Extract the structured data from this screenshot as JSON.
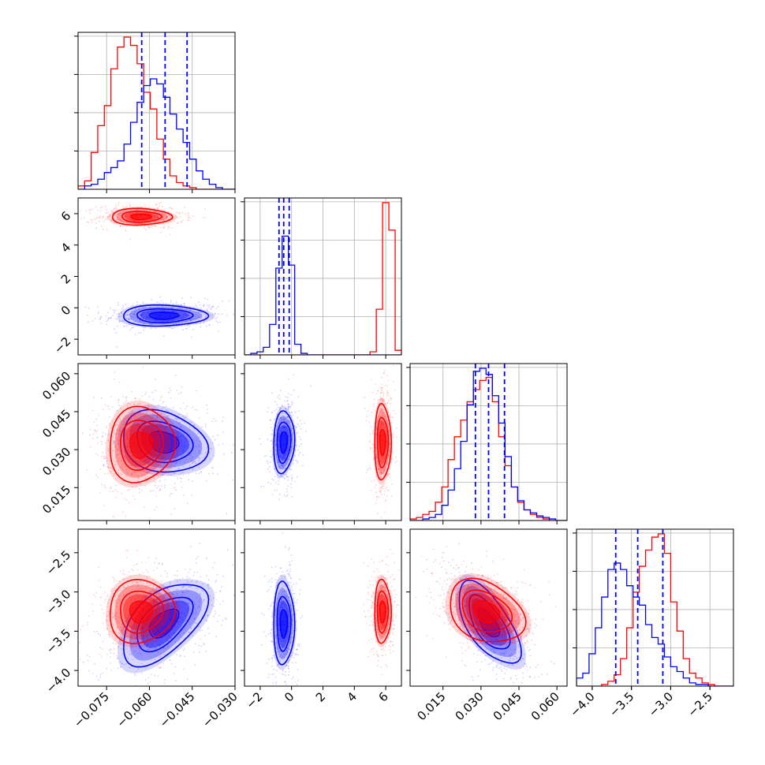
{
  "colors": {
    "series_a": "#ff0000",
    "series_b": "#0000ff",
    "frame": "#000000",
    "grid": "#b0b0b0"
  },
  "chart_data": {
    "type": "corner",
    "grid": true,
    "legend": "none",
    "series": [
      {
        "color": "#ff0000"
      },
      {
        "color": "#0000ff"
      }
    ],
    "parameters": [
      {
        "range": [
          -0.085,
          -0.03
        ],
        "ticks": [
          -0.075,
          -0.06,
          -0.045,
          -0.03
        ],
        "tick_labels": [
          "−0.075",
          "−0.060",
          "−0.045",
          "−0.030"
        ],
        "quantiles": [
          -0.0627,
          -0.0545,
          -0.0468
        ],
        "hist_bins": [
          -0.085,
          -0.0827,
          -0.0804,
          -0.0781,
          -0.0758,
          -0.0735,
          -0.0712,
          -0.0689,
          -0.0666,
          -0.0643,
          -0.062,
          -0.0597,
          -0.0574,
          -0.0551,
          -0.0528,
          -0.0505,
          -0.0482,
          -0.0459,
          -0.0436,
          -0.0413,
          -0.039,
          -0.0367,
          -0.0344,
          -0.0321,
          -0.03
        ],
        "hist_red": [
          0.02,
          0.05,
          0.22,
          0.38,
          0.5,
          0.72,
          0.85,
          0.91,
          0.86,
          0.75,
          0.58,
          0.48,
          0.3,
          0.18,
          0.08,
          0.04,
          0.02,
          0.01,
          0,
          0,
          0,
          0,
          0,
          0
        ],
        "hist_blue": [
          0,
          0.02,
          0.03,
          0.06,
          0.1,
          0.13,
          0.17,
          0.27,
          0.4,
          0.52,
          0.62,
          0.66,
          0.63,
          0.55,
          0.45,
          0.36,
          0.28,
          0.18,
          0.11,
          0.06,
          0.03,
          0.01,
          0,
          0
        ]
      },
      {
        "range": [
          -3.0,
          7.0
        ],
        "ticks": [
          -2,
          0,
          2,
          4,
          6
        ],
        "tick_labels": [
          "−2",
          "0",
          "2",
          "4",
          "6"
        ],
        "quantiles": [
          -0.8,
          -0.5,
          -0.15
        ],
        "hist_bins": [
          -3,
          -2.6,
          -2.2,
          -1.8,
          -1.4,
          -1.0,
          -0.6,
          -0.2,
          0.2,
          0.6,
          1.0,
          1.4,
          1.8,
          2.2,
          2.6,
          3.0,
          3.4,
          3.8,
          4.2,
          4.6,
          5.0,
          5.4,
          5.8,
          6.2,
          6.6,
          7.0
        ],
        "hist_red": [
          0,
          0,
          0,
          0,
          0,
          0,
          0,
          0,
          0,
          0,
          0,
          0,
          0,
          0,
          0,
          0,
          0,
          0,
          0,
          0,
          0.02,
          0.3,
          1.0,
          0.82,
          0.03
        ],
        "hist_blue": [
          0,
          0.01,
          0.02,
          0.05,
          0.2,
          0.57,
          0.78,
          0.59,
          0.07,
          0.01,
          0,
          0,
          0,
          0,
          0,
          0,
          0,
          0,
          0,
          0,
          0,
          0,
          0,
          0,
          0
        ]
      },
      {
        "range": [
          0.002,
          0.064
        ],
        "ticks": [
          0.015,
          0.03,
          0.045,
          0.06
        ],
        "tick_labels": [
          "0.015",
          "0.030",
          "0.045",
          "0.060"
        ],
        "quantiles": [
          0.0278,
          0.033,
          0.0393
        ],
        "hist_bins": [
          0.002,
          0.0045,
          0.007,
          0.0095,
          0.012,
          0.0145,
          0.017,
          0.0195,
          0.022,
          0.0245,
          0.027,
          0.0295,
          0.032,
          0.0345,
          0.037,
          0.0395,
          0.042,
          0.0445,
          0.047,
          0.0495,
          0.052,
          0.0545,
          0.057,
          0.0595,
          0.062,
          0.064
        ],
        "hist_red": [
          0.01,
          0.02,
          0.04,
          0.06,
          0.12,
          0.22,
          0.4,
          0.55,
          0.66,
          0.78,
          0.86,
          0.92,
          0.94,
          0.78,
          0.55,
          0.36,
          0.22,
          0.12,
          0.07,
          0.04,
          0.02,
          0.01,
          0,
          0,
          0
        ],
        "hist_blue": [
          0,
          0,
          0.01,
          0.02,
          0.04,
          0.1,
          0.2,
          0.34,
          0.52,
          0.76,
          0.98,
          1.0,
          0.96,
          0.82,
          0.64,
          0.42,
          0.22,
          0.13,
          0.07,
          0.05,
          0.03,
          0.02,
          0.01,
          0,
          0
        ]
      },
      {
        "range": [
          -4.2,
          -2.2
        ],
        "ticks": [
          -4.0,
          -3.5,
          -3.0,
          -2.5
        ],
        "tick_labels": [
          "−4.0",
          "−3.5",
          "−3.0",
          "−2.5"
        ],
        "quantiles": [
          -3.7,
          -3.42,
          -3.1
        ],
        "hist_bins": [
          -4.2,
          -4.12,
          -4.04,
          -3.96,
          -3.88,
          -3.8,
          -3.72,
          -3.64,
          -3.56,
          -3.48,
          -3.4,
          -3.32,
          -3.24,
          -3.16,
          -3.08,
          -3.0,
          -2.92,
          -2.84,
          -2.76,
          -2.68,
          -2.6,
          -2.52,
          -2.44,
          -2.36,
          -2.28,
          -2.2
        ],
        "hist_red": [
          0,
          0,
          0,
          0,
          0.01,
          0.03,
          0.07,
          0.17,
          0.36,
          0.58,
          0.74,
          0.84,
          0.92,
          0.94,
          0.82,
          0.52,
          0.34,
          0.17,
          0.08,
          0.05,
          0.02,
          0.01,
          0,
          0,
          0
        ],
        "hist_blue": [
          0.05,
          0.08,
          0.2,
          0.36,
          0.55,
          0.72,
          0.76,
          0.72,
          0.62,
          0.55,
          0.5,
          0.38,
          0.3,
          0.26,
          0.18,
          0.12,
          0.09,
          0.05,
          0.02,
          0.01,
          0.01,
          0,
          0,
          0,
          0
        ]
      }
    ],
    "pairs": [
      {
        "row": 1,
        "col": 0,
        "red": {
          "mean": [
            -0.063,
            5.8
          ],
          "sd": [
            0.006,
            0.3
          ],
          "rho": 0.0
        },
        "blue": {
          "mean": [
            -0.055,
            -0.5
          ],
          "sd": [
            0.0085,
            0.38
          ],
          "rho": 0.0
        }
      },
      {
        "row": 2,
        "col": 0,
        "red": {
          "mean": [
            -0.063,
            0.032
          ],
          "sd": [
            0.0065,
            0.0085
          ],
          "rho": 0.05
        },
        "blue": {
          "mean": [
            -0.055,
            0.033
          ],
          "sd": [
            0.0085,
            0.007
          ],
          "rho": -0.2
        }
      },
      {
        "row": 2,
        "col": 1,
        "red": {
          "mean": [
            5.8,
            0.033
          ],
          "sd": [
            0.3,
            0.0085
          ],
          "rho": 0.0
        },
        "blue": {
          "mean": [
            -0.5,
            0.033
          ],
          "sd": [
            0.38,
            0.007
          ],
          "rho": 0.1
        }
      },
      {
        "row": 3,
        "col": 0,
        "red": {
          "mean": [
            -0.063,
            -3.25
          ],
          "sd": [
            0.0065,
            0.23
          ],
          "rho": 0.05
        },
        "blue": {
          "mean": [
            -0.055,
            -3.4
          ],
          "sd": [
            0.0085,
            0.3
          ],
          "rho": 0.55
        }
      },
      {
        "row": 3,
        "col": 1,
        "red": {
          "mean": [
            5.8,
            -3.25
          ],
          "sd": [
            0.3,
            0.23
          ],
          "rho": 0.0
        },
        "blue": {
          "mean": [
            -0.5,
            -3.4
          ],
          "sd": [
            0.38,
            0.3
          ],
          "rho": 0.0
        }
      },
      {
        "row": 3,
        "col": 2,
        "red": {
          "mean": [
            0.032,
            -3.25
          ],
          "sd": [
            0.0085,
            0.23
          ],
          "rho": -0.3
        },
        "blue": {
          "mean": [
            0.033,
            -3.4
          ],
          "sd": [
            0.007,
            0.3
          ],
          "rho": -0.65
        }
      }
    ]
  }
}
